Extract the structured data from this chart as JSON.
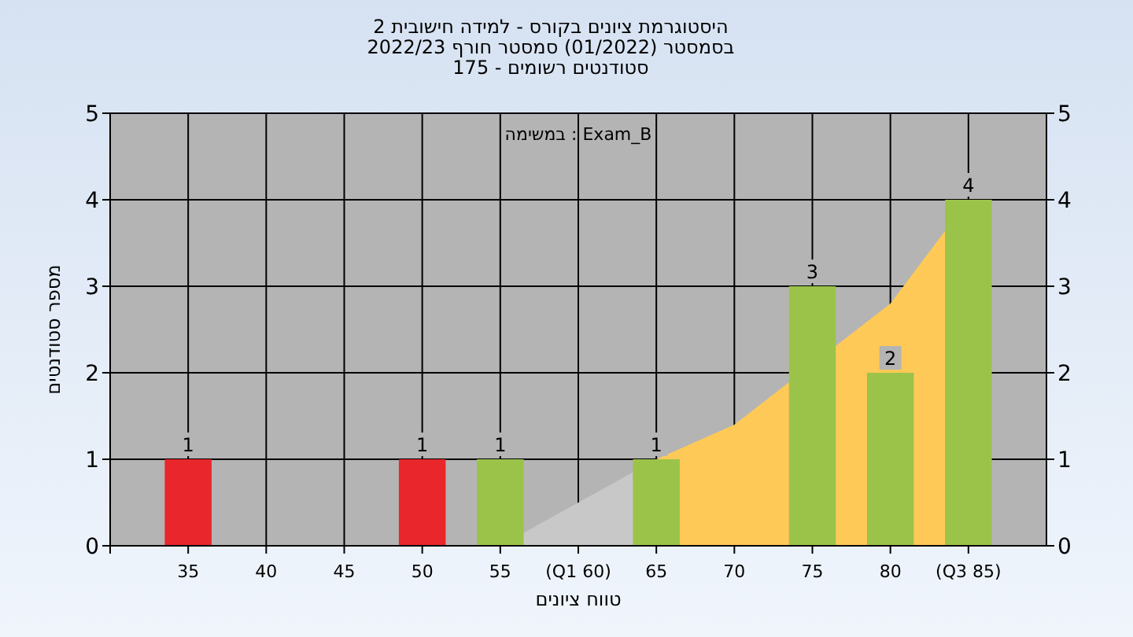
{
  "chart_data": {
    "type": "bar",
    "title": "היסטוגרמת ציונים בקורס - למידה חישובית 2",
    "subtitle": "בסמסטר  (01/2022)  סמסטר חורף 2022/23\nסטודנטים רשומים - 175",
    "xlabel": "טווח ציונים",
    "ylabel": "מספר סטודנטים",
    "annotations": [
      "במשימה : Exam_B"
    ],
    "categories": [
      "35",
      "40",
      "45",
      "50",
      "55",
      "(Q1 60)",
      "65",
      "70",
      "75",
      "80",
      "(Q3 85)"
    ],
    "series": [
      {
        "type": "area",
        "color": "#c8c8c8",
        "values": [
          null,
          null,
          null,
          null,
          0,
          0.5,
          1.0,
          null,
          null,
          null,
          null
        ]
      },
      {
        "type": "area",
        "color": "#ffc957",
        "values": [
          null,
          null,
          null,
          null,
          null,
          null,
          1.0,
          1.4,
          null,
          2.8,
          4.0
        ]
      },
      {
        "colors": [
          "#e8262b",
          "#9bc34a",
          "#9bc34a",
          "#e8262b",
          "#9bc34a",
          "#9bc34a",
          "#9bc34a",
          "#9bc34a",
          "#9bc34a",
          "#9bc34a",
          "#9bc34a"
        ],
        "values": [
          1,
          0,
          0,
          1,
          1,
          0,
          1,
          0,
          3,
          2,
          4
        ],
        "value_labels": [
          "1",
          null,
          null,
          "1",
          "1",
          null,
          "1",
          null,
          "3",
          "2",
          "4"
        ]
      }
    ],
    "ylim": [
      0,
      5
    ],
    "yticks": [
      0,
      1,
      2,
      3,
      4,
      5
    ],
    "y2lim": [
      0,
      5
    ],
    "y2ticks": [
      0,
      1,
      2,
      3,
      4,
      5
    ],
    "grid": true
  }
}
